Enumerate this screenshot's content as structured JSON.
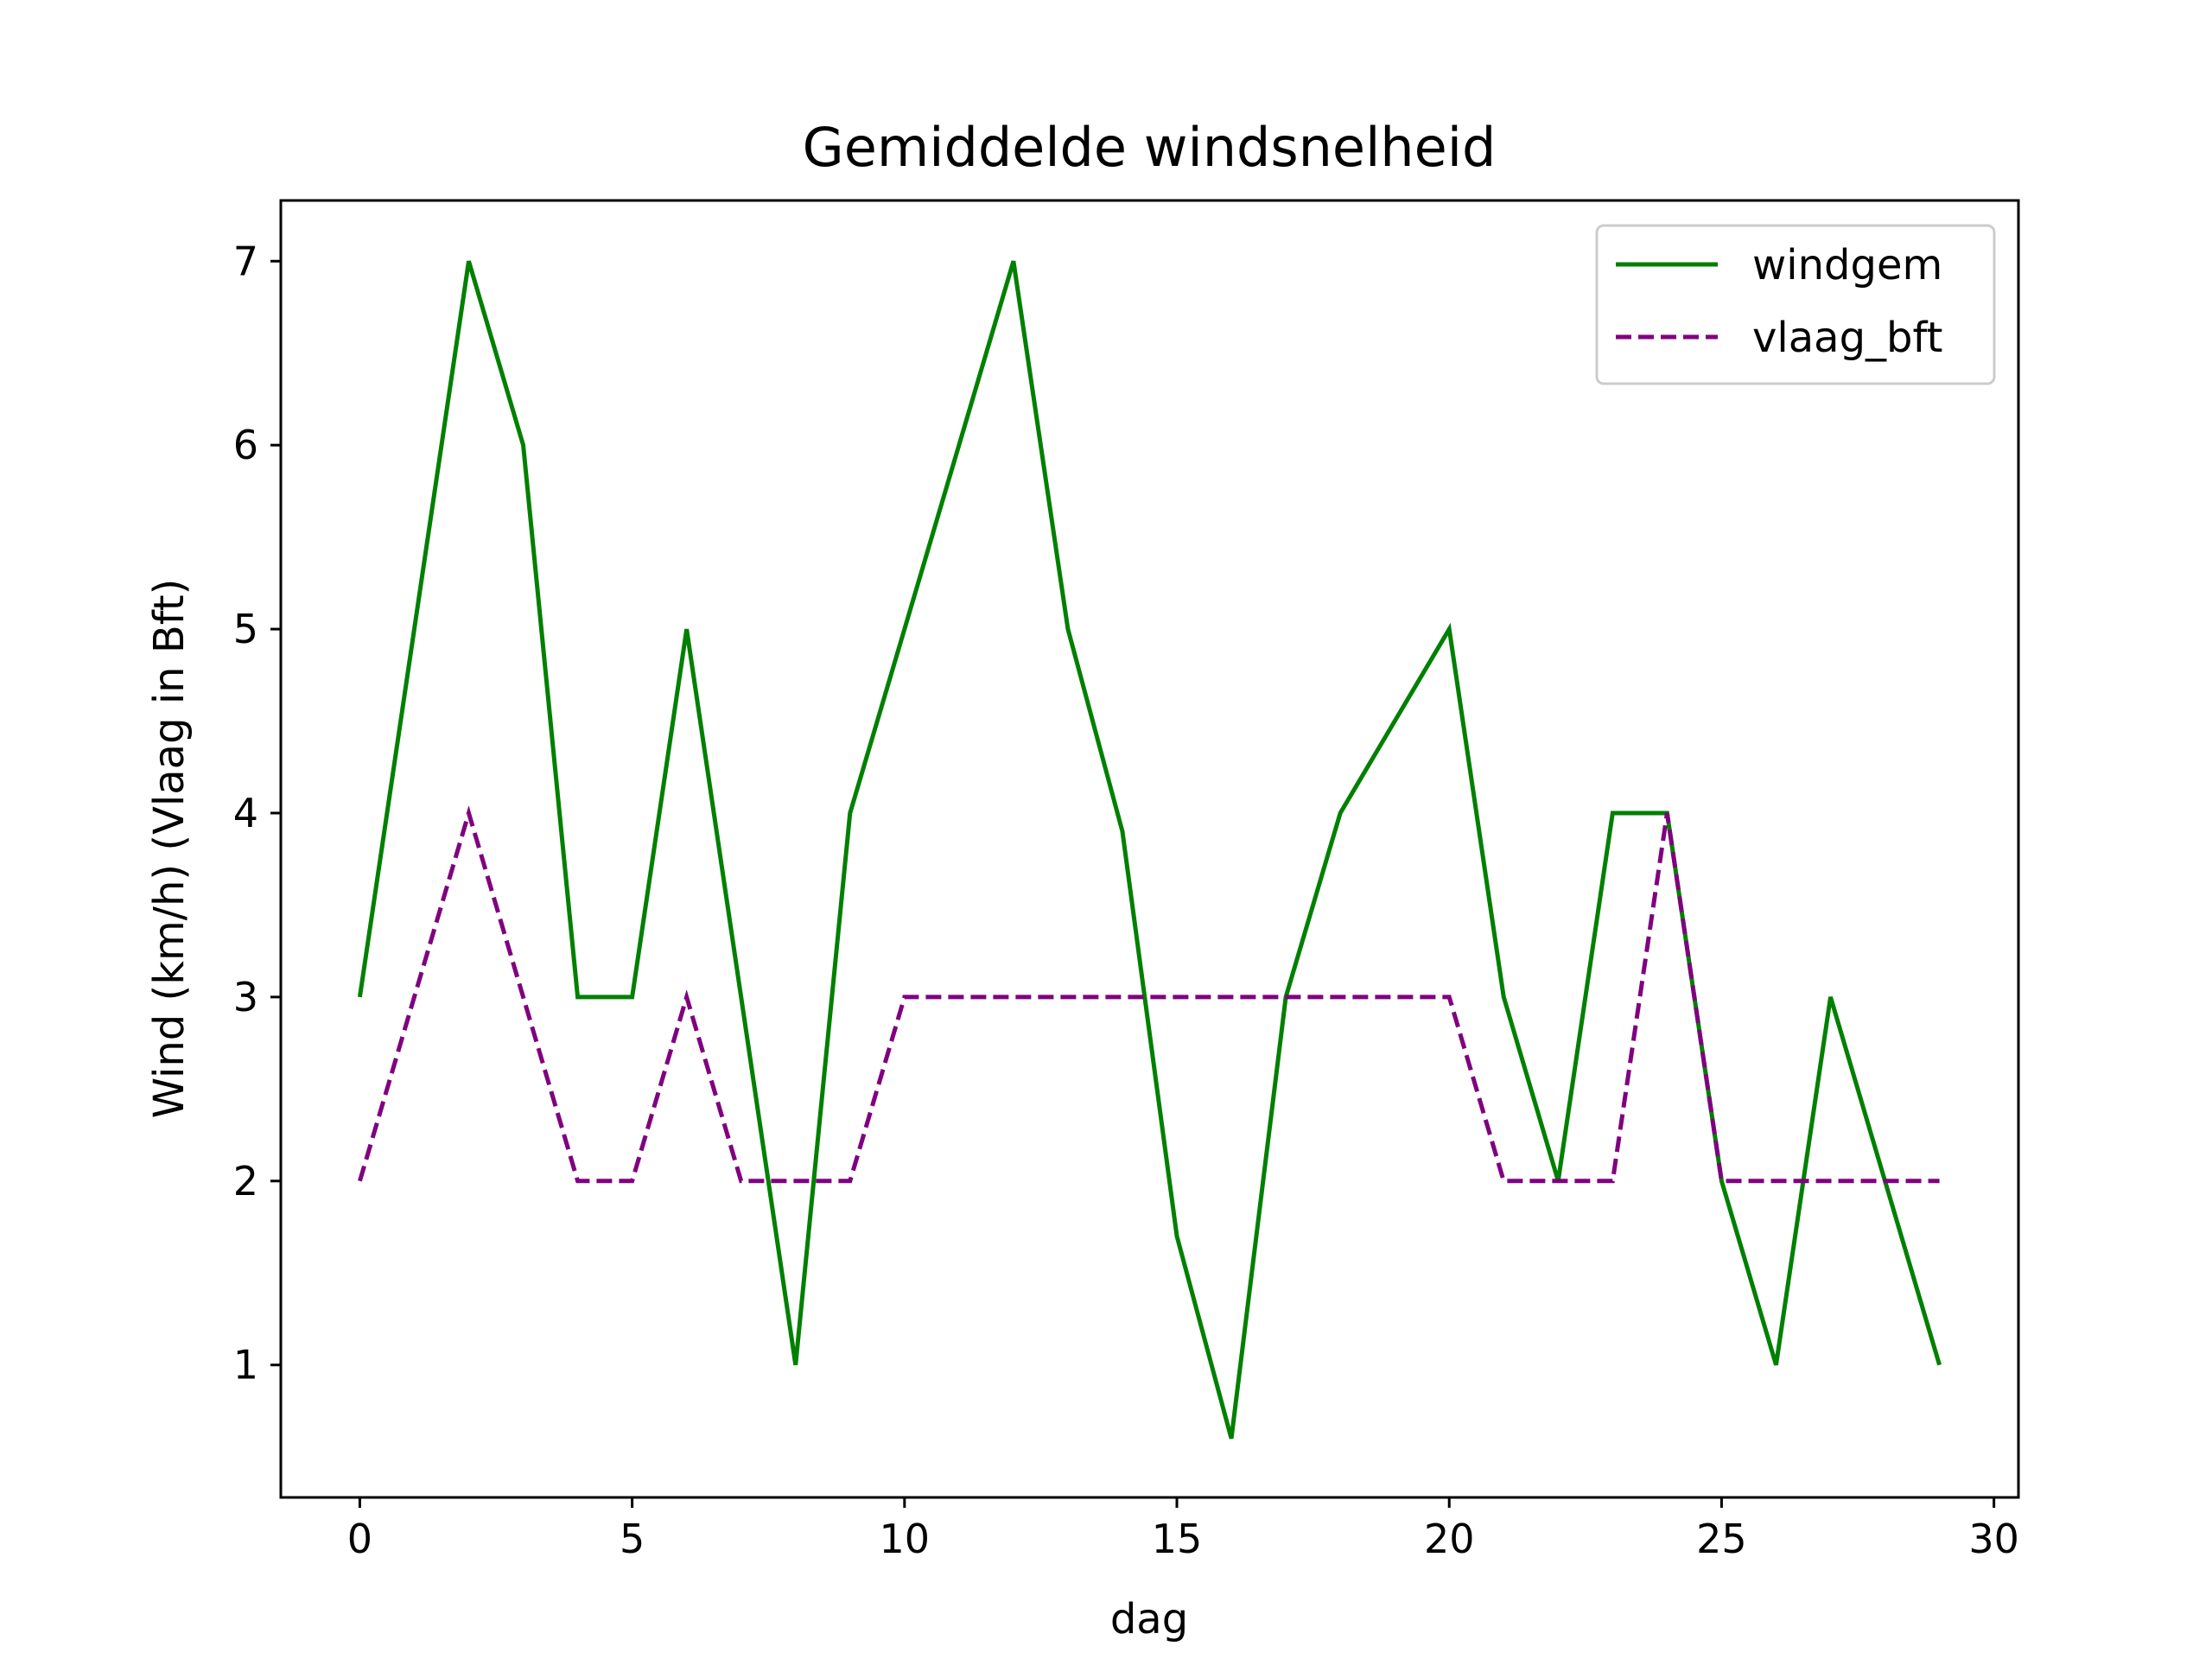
{
  "chart_data": {
    "type": "line",
    "title": "Gemiddelde windsnelheid",
    "xlabel": "dag",
    "ylabel": "Wind (km/h) (Vlaag in Bft)",
    "xlim": [
      -1.45,
      30.45
    ],
    "ylim": [
      0.28,
      7.33
    ],
    "xticks": [
      0,
      5,
      10,
      15,
      20,
      25,
      30
    ],
    "yticks": [
      1,
      2,
      3,
      4,
      5,
      6,
      7
    ],
    "grid": false,
    "legend_position": "top-right",
    "x": [
      0,
      1,
      2,
      3,
      4,
      5,
      6,
      7,
      8,
      9,
      10,
      11,
      12,
      13,
      14,
      15,
      16,
      17,
      18,
      19,
      20,
      21,
      22,
      23,
      24,
      25,
      26,
      27,
      28,
      29
    ],
    "series": [
      {
        "name": "windgem",
        "color": "#008000",
        "style": "solid",
        "values": [
          3,
          5,
          7,
          6,
          3,
          3,
          5,
          3,
          1,
          4,
          5,
          6,
          7,
          5,
          3.9,
          1.7,
          0.6,
          3,
          4,
          4.5,
          5,
          3,
          2,
          4,
          4,
          2,
          1,
          3,
          2,
          1
        ]
      },
      {
        "name": "vlaag_bft",
        "color": "#800080",
        "style": "dashed",
        "values": [
          2,
          3,
          4,
          3,
          2,
          2,
          3,
          2,
          2,
          2,
          3,
          3,
          3,
          3,
          3,
          3,
          3,
          3,
          3,
          3,
          3,
          2,
          2,
          2,
          4,
          2,
          2,
          2,
          2,
          2
        ]
      }
    ]
  }
}
